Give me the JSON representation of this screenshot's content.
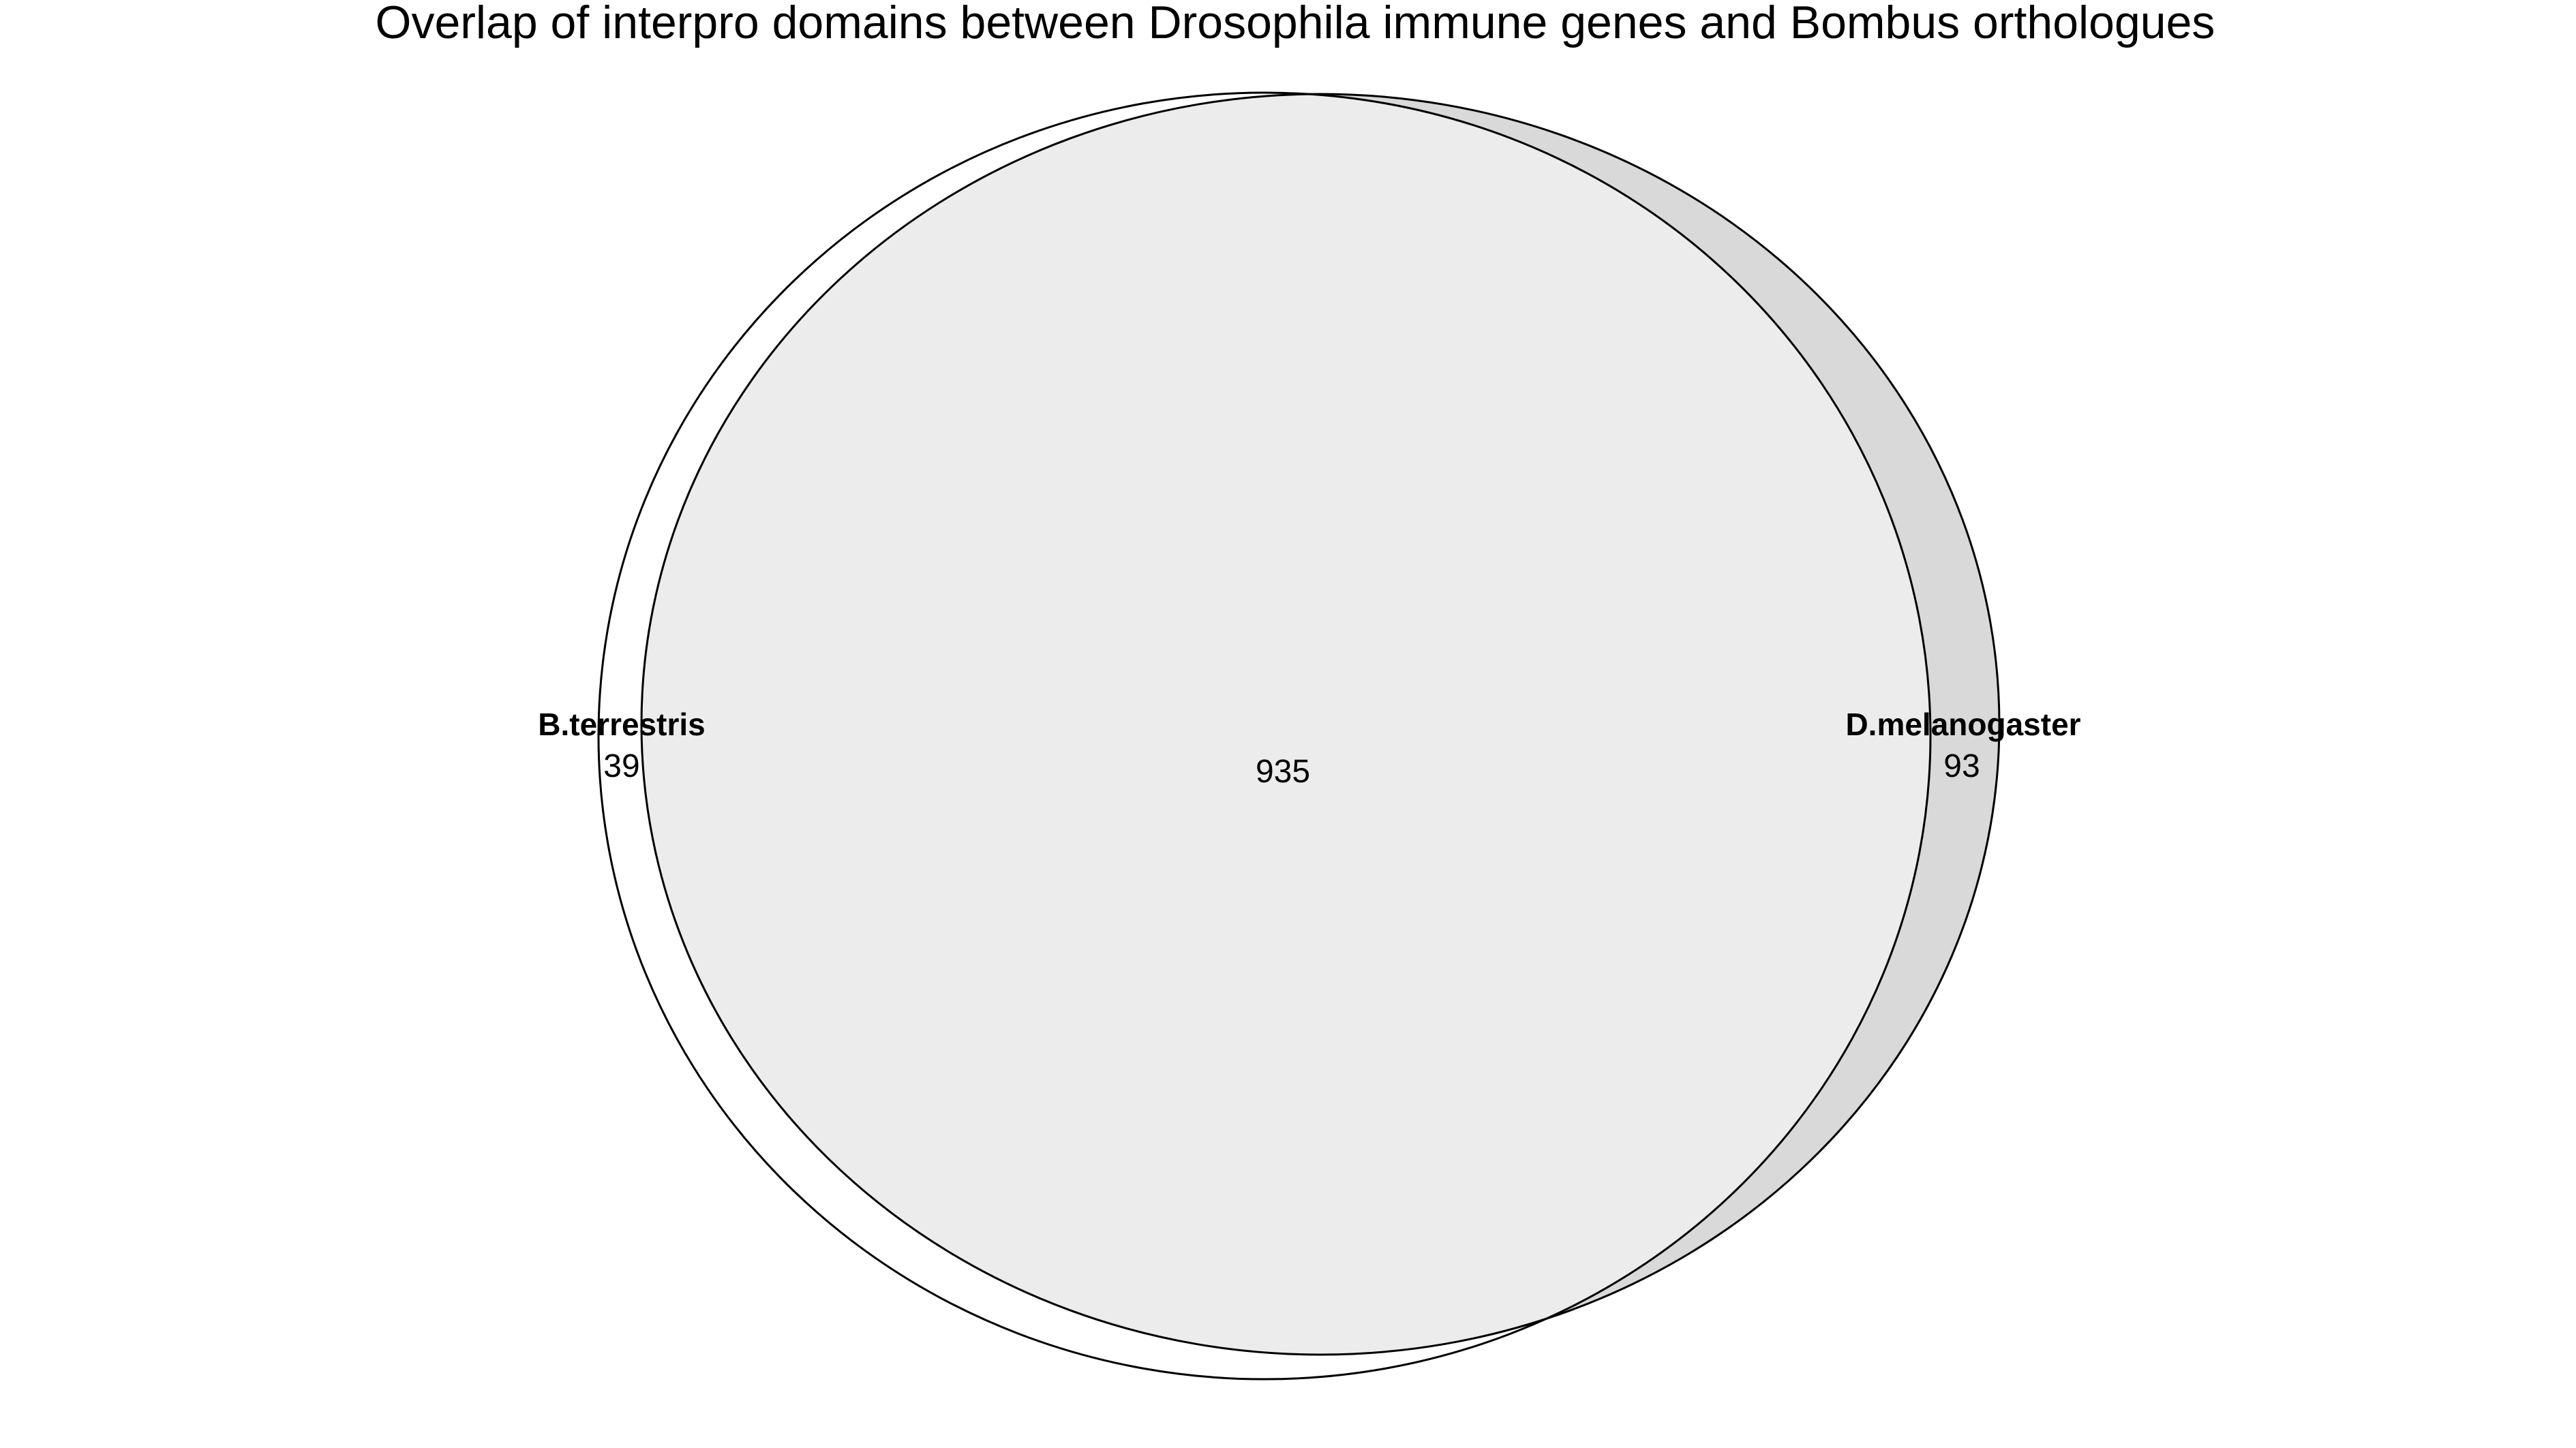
{
  "figure": {
    "title": "Overlap of interpro domains between Drosophila immune genes and Bombus orthologues"
  },
  "venn": {
    "sets": [
      {
        "name": "B.terrestris",
        "only_count": "39",
        "fill_color": "#ffffff"
      },
      {
        "name": "D.melanogaster",
        "only_count": "93",
        "fill_color": "#d9d9d9"
      }
    ],
    "intersection": {
      "count": "935",
      "fill_color": "#ececec"
    }
  }
}
